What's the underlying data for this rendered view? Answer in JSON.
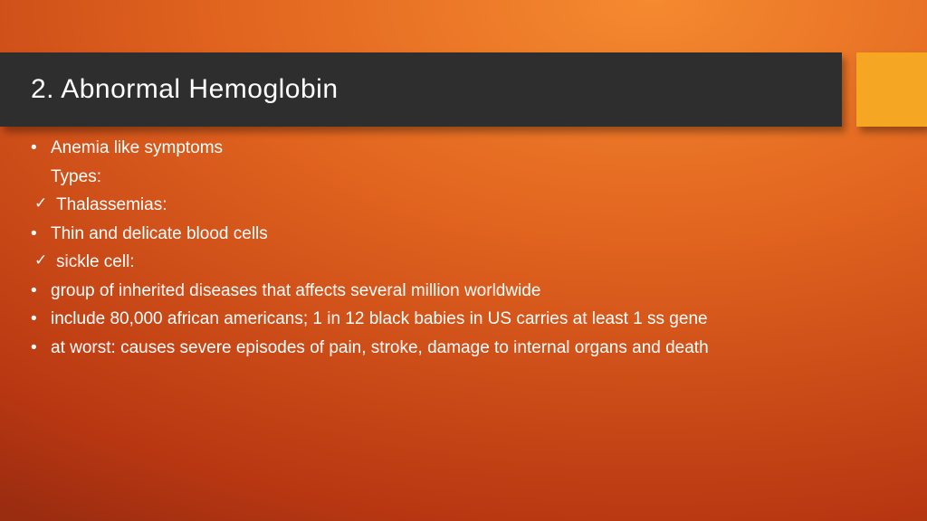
{
  "colors": {
    "title_bar_bg": "#2e2e2e",
    "accent_box_bg": "#f5a623",
    "text_color": "#ffffff",
    "bg_light": "#f58a30",
    "bg_mid": "#e0621e",
    "bg_dark": "#b83712"
  },
  "typography": {
    "title_fontsize": 30,
    "body_fontsize": 19,
    "font_family": "Trebuchet MS"
  },
  "title": "2. Abnormal Hemoglobin",
  "lines": [
    {
      "marker": "•",
      "text": "Anemia like symptoms"
    },
    {
      "marker": "",
      "text": "Types:"
    },
    {
      "marker": "✓",
      "text": "Thalassemias:",
      "indent": true
    },
    {
      "marker": "•",
      "text": "Thin and delicate blood cells"
    },
    {
      "marker": "✓",
      "text": "sickle cell:",
      "indent": true
    },
    {
      "marker": "•",
      "text": "group of inherited diseases that affects several million worldwide"
    },
    {
      "marker": "•",
      "text": "include 80,000 african americans; 1 in 12 black babies in US carries at least 1 ss gene"
    },
    {
      "marker": "•",
      "text": "at worst: causes severe episodes of pain, stroke, damage to internal organs and death"
    }
  ]
}
